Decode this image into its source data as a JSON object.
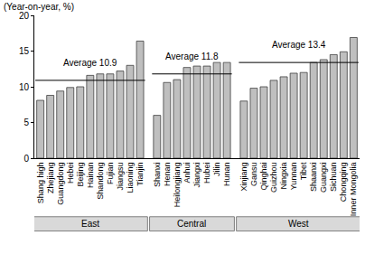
{
  "chart_data": {
    "type": "bar",
    "y_label": "(Year-on-year, %)",
    "color": "#bfbfbf",
    "ylim": [
      0,
      20
    ],
    "yticks": [
      0,
      5,
      10,
      15,
      20
    ],
    "grid": false,
    "groups": [
      {
        "name": "East",
        "categories": [
          "Shang high",
          "Zhejiang",
          "Guangdong",
          "Hebei",
          "Beijing",
          "Hainan",
          "Shandong",
          "Fujian",
          "Jiangsu",
          "Liaoning",
          "Tianjin"
        ],
        "values": [
          8.1,
          8.8,
          9.4,
          9.9,
          10.0,
          11.6,
          11.8,
          11.8,
          12.2,
          13.0,
          16.4
        ],
        "average": 10.9,
        "average_label": "Average 10.9"
      },
      {
        "name": "Central",
        "categories": [
          "Shanxi",
          "Henan",
          "Heilongjiang",
          "Anhui",
          "Jiangxi",
          "Hubei",
          "Jilin",
          "Hunan"
        ],
        "values": [
          6.0,
          10.6,
          11.0,
          12.7,
          12.9,
          12.9,
          13.4,
          13.4
        ],
        "average": 11.8,
        "average_label": "Average 11.8"
      },
      {
        "name": "West",
        "categories": [
          "Xinjiang",
          "Gansu",
          "Qinghai",
          "Guizhou",
          "Ningxia",
          "Yunnan",
          "Tibet",
          "Shaanxi",
          "Guangxi",
          "Sichuan",
          "Chongqing",
          "Inner Mongolia"
        ],
        "values": [
          8.0,
          9.8,
          10.0,
          10.9,
          11.4,
          11.9,
          12.0,
          13.4,
          13.8,
          14.5,
          14.9,
          16.9
        ],
        "average": 13.4,
        "average_label": "Average 13.4"
      }
    ]
  }
}
